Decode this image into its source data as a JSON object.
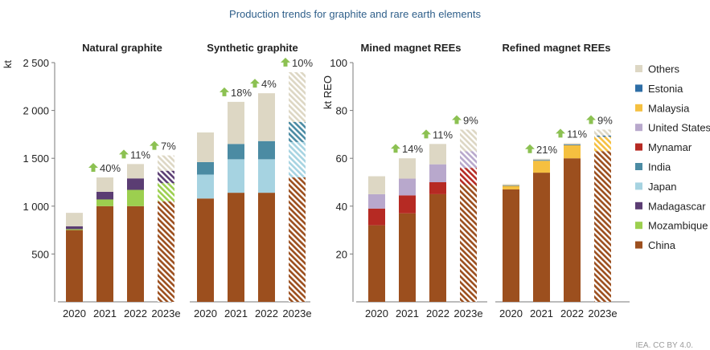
{
  "title": "Production trends for graphite and rare earth elements",
  "credit": "IEA. CC BY 4.0.",
  "colors": {
    "Others": "#ddd7c4",
    "Estonia": "#2e6ea6",
    "Malaysia": "#f5c040",
    "United States": "#b8a8cc",
    "Mynamar": "#b62a23",
    "India": "#4b8ba3",
    "Japan": "#a6d3e1",
    "Madagascar": "#5b3d73",
    "Mozambique": "#9ccf4f",
    "China": "#9c4f1e",
    "growth_arrow": "#8cc152"
  },
  "legend": [
    "Others",
    "Estonia",
    "Malaysia",
    "United States",
    "Mynamar",
    "India",
    "Japan",
    "Madagascar",
    "Mozambique",
    "China"
  ],
  "chart_data": [
    {
      "type": "bar",
      "stacked": true,
      "title": "Natural graphite",
      "ylabel": "kt",
      "ylim": [
        0,
        2500
      ],
      "yticks": [
        500,
        1000,
        1500,
        2000,
        2500
      ],
      "ytick_labels": [
        "500",
        "1 000",
        "1 500",
        "2 000",
        "2 500"
      ],
      "categories": [
        "2020",
        "2021",
        "2022",
        "2023e"
      ],
      "estimated_last": true,
      "growth_labels": [
        "",
        "40%",
        "11%",
        "7%"
      ],
      "series": [
        {
          "name": "China",
          "values": [
            750,
            1000,
            1000,
            1050
          ]
        },
        {
          "name": "Mozambique",
          "values": [
            10,
            70,
            170,
            190
          ]
        },
        {
          "name": "Madagascar",
          "values": [
            30,
            80,
            120,
            130
          ]
        },
        {
          "name": "Others",
          "values": [
            140,
            150,
            150,
            160
          ]
        }
      ]
    },
    {
      "type": "bar",
      "stacked": true,
      "title": "Synthetic graphite",
      "ylim": [
        0,
        2500
      ],
      "categories": [
        "2020",
        "2021",
        "2022",
        "2023e"
      ],
      "estimated_last": true,
      "growth_labels": [
        "",
        "18%",
        "4%",
        "10%"
      ],
      "series": [
        {
          "name": "China",
          "values": [
            1080,
            1140,
            1140,
            1300
          ]
        },
        {
          "name": "Japan",
          "values": [
            250,
            350,
            350,
            370
          ]
        },
        {
          "name": "India",
          "values": [
            130,
            160,
            190,
            210
          ]
        },
        {
          "name": "Others",
          "values": [
            310,
            440,
            500,
            520
          ]
        }
      ]
    },
    {
      "type": "bar",
      "stacked": true,
      "title": "Mined magnet REEs",
      "ylabel": "kt REO",
      "ylim": [
        0,
        100
      ],
      "yticks": [
        20,
        40,
        60,
        80,
        100
      ],
      "ytick_labels": [
        "20",
        "40",
        "60",
        "80",
        "100"
      ],
      "categories": [
        "2020",
        "2021",
        "2022",
        "2023e"
      ],
      "estimated_last": true,
      "growth_labels": [
        "",
        "14%",
        "11%",
        "9%"
      ],
      "series": [
        {
          "name": "China",
          "values": [
            32,
            37,
            45,
            49
          ]
        },
        {
          "name": "Mynamar",
          "values": [
            7,
            7.5,
            5,
            7
          ]
        },
        {
          "name": "United States",
          "values": [
            6,
            7,
            7.5,
            7
          ]
        },
        {
          "name": "Others",
          "values": [
            7.5,
            8.5,
            8.5,
            9
          ]
        }
      ]
    },
    {
      "type": "bar",
      "stacked": true,
      "title": "Refined magnet REEs",
      "ylim": [
        0,
        100
      ],
      "categories": [
        "2020",
        "2021",
        "2022",
        "2023e"
      ],
      "estimated_last": true,
      "growth_labels": [
        "",
        "21%",
        "11%",
        "9%"
      ],
      "series": [
        {
          "name": "China",
          "values": [
            47,
            54,
            60,
            63
          ]
        },
        {
          "name": "Malaysia",
          "values": [
            1.5,
            5,
            5.5,
            6
          ]
        },
        {
          "name": "Estonia",
          "values": [
            0.2,
            0.3,
            0.3,
            0.5
          ]
        },
        {
          "name": "Others",
          "values": [
            0.5,
            0.5,
            0.5,
            2.5
          ]
        }
      ]
    }
  ]
}
